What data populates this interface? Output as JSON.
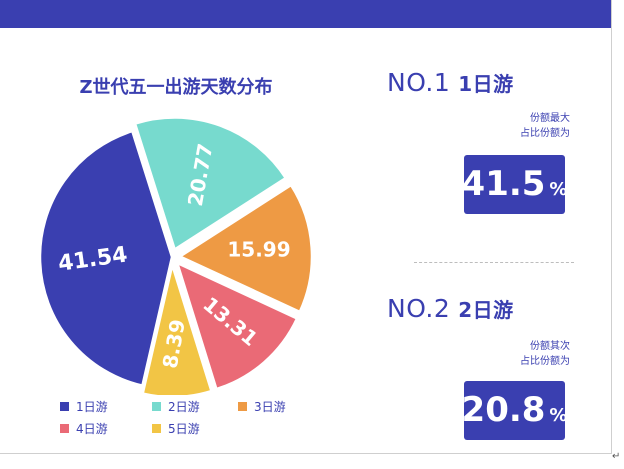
{
  "chart_data": {
    "type": "pie",
    "title": "Z世代五一出游天数分布",
    "categories": [
      "1日游",
      "2日游",
      "3日游",
      "4日游",
      "5日游"
    ],
    "values": [
      41.54,
      20.77,
      15.99,
      13.31,
      8.39
    ],
    "labels": [
      "41.54",
      "20.77",
      "15.99",
      "13.31",
      "8.39"
    ],
    "colors": [
      "#3a3fb0",
      "#77dace",
      "#ee9a44",
      "#ea6a76",
      "#f2c545"
    ],
    "legend_position": "bottom"
  },
  "rank1": {
    "no": "NO.1",
    "label": "1日游",
    "note1": "份额最大",
    "note2": "占比份额为",
    "value": "41.5",
    "unit": "%"
  },
  "rank2": {
    "no": "NO.2",
    "label": "2日游",
    "note1": "份额其次",
    "note2": "占比份额为",
    "value": "20.8",
    "unit": "%"
  },
  "corner_mark": "↵"
}
